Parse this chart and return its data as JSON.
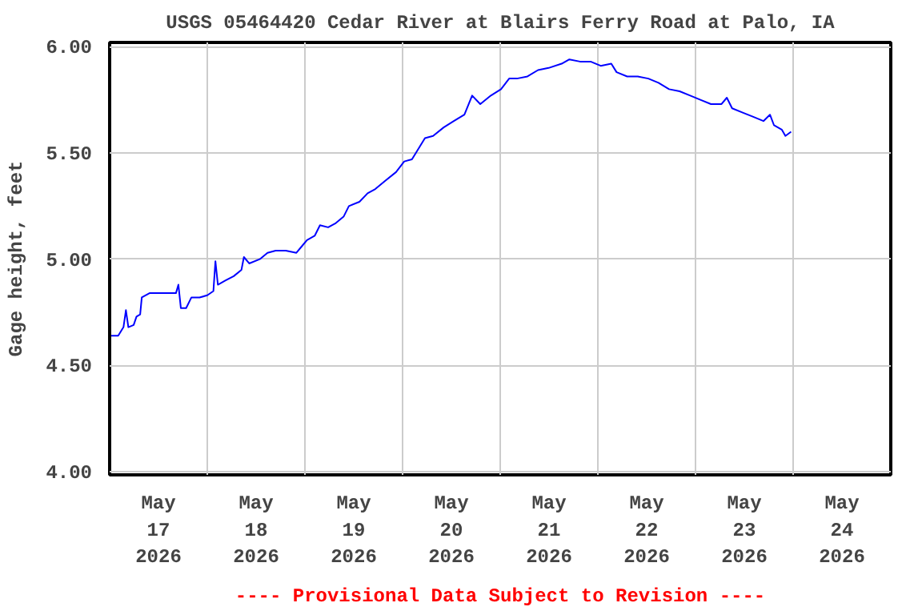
{
  "chart_data": {
    "type": "line",
    "title": "USGS 05464420 Cedar River at Blairs Ferry Road at Palo, IA",
    "ylabel": "Gage height, feet",
    "annotations": [
      "---- Provisional Data Subject to Revision ----"
    ],
    "x": [
      "2026-05-17T00:24",
      "2026-05-17T02:06",
      "2026-05-17T03:24",
      "2026-05-17T04:00",
      "2026-05-17T04:36",
      "2026-05-17T05:54",
      "2026-05-17T06:36",
      "2026-05-17T07:30",
      "2026-05-17T07:54",
      "2026-05-17T09:48",
      "2026-05-17T11:42",
      "2026-05-17T13:42",
      "2026-05-17T16:18",
      "2026-05-17T16:54",
      "2026-05-17T17:30",
      "2026-05-17T18:48",
      "2026-05-17T20:06",
      "2026-05-17T22:06",
      "2026-05-18T00:00",
      "2026-05-18T01:30",
      "2026-05-18T02:00",
      "2026-05-18T02:36",
      "2026-05-18T04:30",
      "2026-05-18T06:30",
      "2026-05-18T08:24",
      "2026-05-18T09:00",
      "2026-05-18T10:18",
      "2026-05-18T12:54",
      "2026-05-18T14:48",
      "2026-05-18T16:48",
      "2026-05-18T19:18",
      "2026-05-18T21:54",
      "2026-05-18T23:12",
      "2026-05-19T00:30",
      "2026-05-19T02:24",
      "2026-05-19T03:42",
      "2026-05-19T05:42",
      "2026-05-19T07:36",
      "2026-05-19T09:30",
      "2026-05-19T10:48",
      "2026-05-19T13:24",
      "2026-05-19T15:24",
      "2026-05-19T17:18",
      "2026-05-19T19:48",
      "2026-05-19T22:24",
      "2026-05-20T00:24",
      "2026-05-20T02:18",
      "2026-05-20T03:36",
      "2026-05-20T05:30",
      "2026-05-20T07:30",
      "2026-05-20T10:06",
      "2026-05-20T12:36",
      "2026-05-20T15:12",
      "2026-05-20T17:06",
      "2026-05-20T19:06",
      "2026-05-20T21:42",
      "2026-05-21T00:12",
      "2026-05-21T02:12",
      "2026-05-21T04:06",
      "2026-05-21T06:42",
      "2026-05-21T09:18",
      "2026-05-21T11:54",
      "2026-05-21T15:06",
      "2026-05-21T17:00",
      "2026-05-21T19:36",
      "2026-05-21T22:12",
      "2026-05-22T00:42",
      "2026-05-22T03:18",
      "2026-05-22T04:36",
      "2026-05-22T07:12",
      "2026-05-22T09:48",
      "2026-05-22T12:24",
      "2026-05-22T14:54",
      "2026-05-22T17:30",
      "2026-05-22T20:06",
      "2026-05-22T22:42",
      "2026-05-23T01:12",
      "2026-05-23T03:48",
      "2026-05-23T06:24",
      "2026-05-23T07:42",
      "2026-05-23T09:00",
      "2026-05-23T11:36",
      "2026-05-23T14:12",
      "2026-05-23T16:42",
      "2026-05-23T18:18",
      "2026-05-23T19:18",
      "2026-05-23T21:12",
      "2026-05-23T22:06",
      "2026-05-23T23:30"
    ],
    "series": [
      {
        "color": "#0000ff",
        "values": [
          4.64,
          4.64,
          4.68,
          4.76,
          4.68,
          4.69,
          4.73,
          4.74,
          4.82,
          4.84,
          4.84,
          4.84,
          4.84,
          4.88,
          4.77,
          4.77,
          4.82,
          4.82,
          4.83,
          4.85,
          4.99,
          4.88,
          4.9,
          4.92,
          4.95,
          5.01,
          4.98,
          5.0,
          5.03,
          5.04,
          5.04,
          5.03,
          5.06,
          5.09,
          5.11,
          5.16,
          5.15,
          5.17,
          5.2,
          5.25,
          5.27,
          5.31,
          5.33,
          5.37,
          5.41,
          5.46,
          5.47,
          5.51,
          5.57,
          5.58,
          5.62,
          5.65,
          5.68,
          5.77,
          5.73,
          5.77,
          5.8,
          5.85,
          5.85,
          5.86,
          5.89,
          5.9,
          5.92,
          5.94,
          5.93,
          5.93,
          5.91,
          5.92,
          5.88,
          5.86,
          5.86,
          5.85,
          5.83,
          5.8,
          5.79,
          5.77,
          5.75,
          5.73,
          5.73,
          5.76,
          5.71,
          5.69,
          5.67,
          5.65,
          5.68,
          5.63,
          5.61,
          5.58,
          5.6
        ]
      }
    ],
    "xlim": [
      "2026-05-17T00:00",
      "2026-05-25T00:00"
    ],
    "xticks": [
      {
        "value": "2026-05-17T12:00",
        "label": "May\n17\n2026"
      },
      {
        "value": "2026-05-18T00:00",
        "label": null
      },
      {
        "value": "2026-05-18T12:00",
        "label": "May\n18\n2026"
      },
      {
        "value": "2026-05-19T00:00",
        "label": null
      },
      {
        "value": "2026-05-19T12:00",
        "label": "May\n19\n2026"
      },
      {
        "value": "2026-05-20T00:00",
        "label": null
      },
      {
        "value": "2026-05-20T12:00",
        "label": "May\n20\n2026"
      },
      {
        "value": "2026-05-21T00:00",
        "label": null
      },
      {
        "value": "2026-05-21T12:00",
        "label": "May\n21\n2026"
      },
      {
        "value": "2026-05-22T00:00",
        "label": null
      },
      {
        "value": "2026-05-22T12:00",
        "label": "May\n22\n2026"
      },
      {
        "value": "2026-05-23T00:00",
        "label": null
      },
      {
        "value": "2026-05-23T12:00",
        "label": "May\n23\n2026"
      },
      {
        "value": "2026-05-24T00:00",
        "label": null
      },
      {
        "value": "2026-05-24T12:00",
        "label": "May\n24\n2026"
      }
    ],
    "ylim": [
      3.985,
      6.02
    ],
    "yticks": [
      {
        "value": 4.0,
        "label": "4.00"
      },
      {
        "value": 4.5,
        "label": "4.50"
      },
      {
        "value": 5.0,
        "label": "5.00"
      },
      {
        "value": 5.5,
        "label": "5.50"
      },
      {
        "value": 6.0,
        "label": "6.00"
      }
    ],
    "grid": true,
    "line_style": "solid"
  }
}
